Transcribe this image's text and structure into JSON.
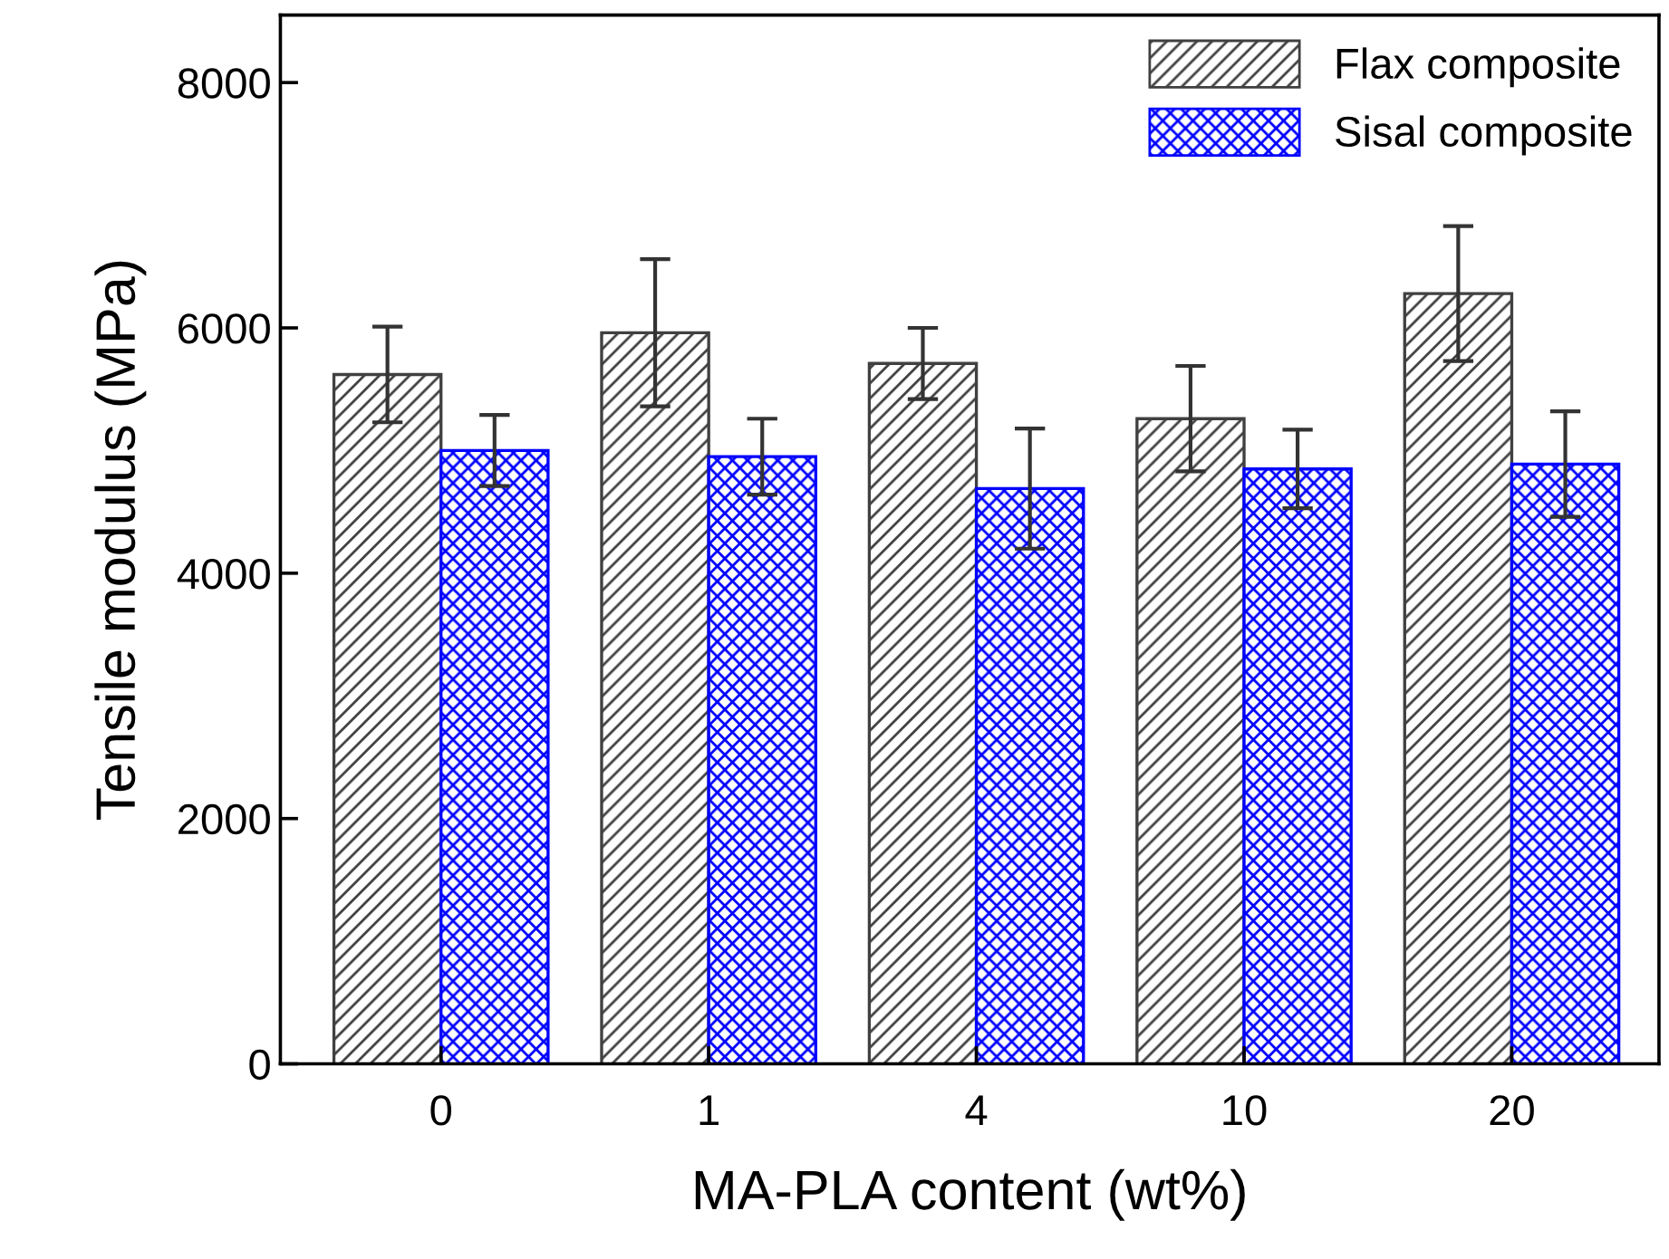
{
  "chart_data": {
    "type": "bar",
    "xlabel": "MA-PLA content (wt%)",
    "ylabel": "Tensile modulus (MPa)",
    "categories": [
      "0",
      "1",
      "4",
      "10",
      "20"
    ],
    "series": [
      {
        "name": "Flax composite",
        "color": "#404040",
        "values": [
          5620,
          5960,
          5710,
          5260,
          6280
        ],
        "errors": [
          390,
          600,
          290,
          430,
          550
        ]
      },
      {
        "name": "Sisal composite",
        "color": "#0000ff",
        "values": [
          5000,
          4950,
          4690,
          4850,
          4890
        ],
        "errors": [
          290,
          310,
          490,
          320,
          430
        ]
      }
    ],
    "ylim": [
      0,
      8550
    ],
    "yticks": [
      0,
      2000,
      4000,
      6000,
      8000
    ],
    "grid": false,
    "legend": "top right"
  }
}
